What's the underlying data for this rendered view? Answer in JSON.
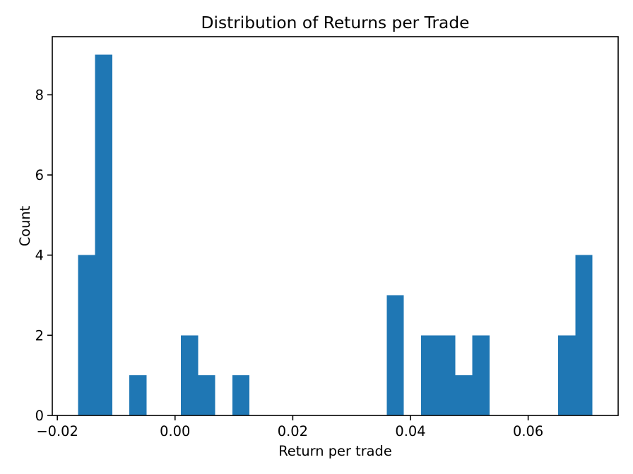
{
  "chart_data": {
    "type": "bar",
    "subtype": "histogram",
    "title": "Distribution of Returns per Trade",
    "xlabel": "Return per trade",
    "ylabel": "Count",
    "bar_color": "#1f77b4",
    "axis_color": "#000000",
    "background_color": "#ffffff",
    "bin_start": -0.01649,
    "bin_end": 0.07092,
    "bin_count": 30,
    "counts": [
      4,
      9,
      0,
      1,
      0,
      0,
      2,
      1,
      0,
      1,
      0,
      0,
      0,
      0,
      0,
      0,
      0,
      0,
      3,
      0,
      2,
      2,
      1,
      2,
      0,
      0,
      0,
      0,
      2,
      4
    ],
    "x_ticks": [
      -0.02,
      0.0,
      0.02,
      0.04,
      0.06
    ],
    "x_tick_labels": [
      "−0.02",
      "0.00",
      "0.02",
      "0.04",
      "0.06"
    ],
    "y_ticks": [
      0,
      2,
      4,
      6,
      8
    ],
    "y_tick_labels": [
      "0",
      "2",
      "4",
      "6",
      "8"
    ],
    "xlim": [
      -0.02086,
      0.07529
    ],
    "ylim": [
      0,
      9.45
    ],
    "grid": false,
    "legend": null
  }
}
